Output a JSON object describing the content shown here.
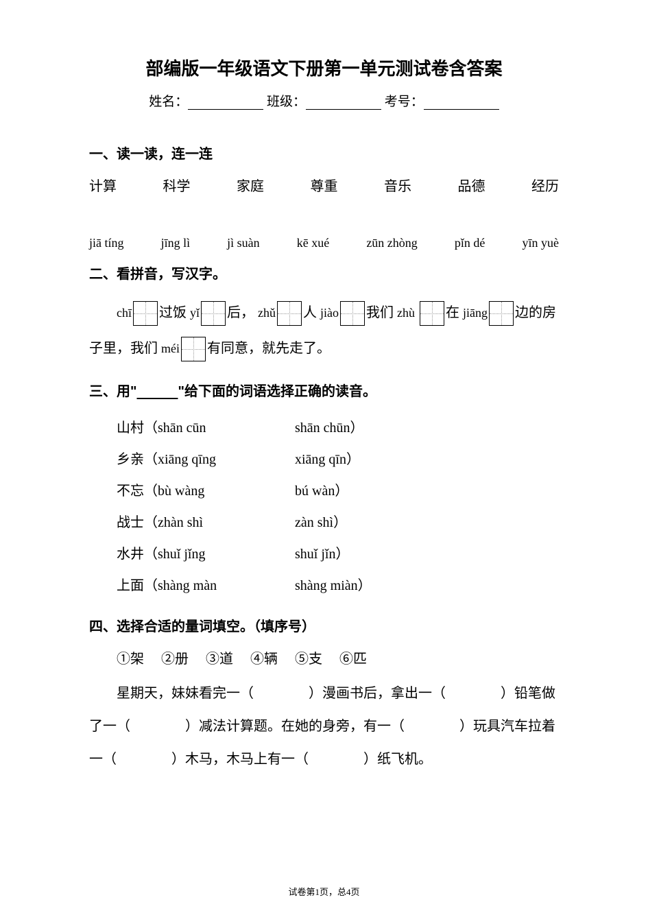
{
  "title": "部编版一年级语文下册第一单元测试卷含答案",
  "header": {
    "name_label": "姓名：",
    "class_label": "班级：",
    "exam_no_label": "考号："
  },
  "q1": {
    "heading": "一、读一读，连一连",
    "words": [
      "计算",
      "科学",
      "家庭",
      "尊重",
      "音乐",
      "品德",
      "经历"
    ],
    "pinyins": [
      "jiā tíng",
      "jīng lì",
      "jì suàn",
      "kē xué",
      "zūn zhòng",
      "pǐn dé",
      "yīn yuè"
    ]
  },
  "q2": {
    "heading": "二、看拼音，写汉字。",
    "seg": {
      "p1": "chī",
      "t1": "过饭 ",
      "p2": "yǐ",
      "t2": "后，",
      "p3": "zhǔ",
      "t3": "人 ",
      "p4": "jiào",
      "t4": "我们 ",
      "p5": "zhù",
      "t5": "在 ",
      "p6": "jiāng",
      "t6": "边的房子里，我们 ",
      "p7": "méi",
      "t7": "有同意，就先走了。"
    }
  },
  "q3": {
    "heading_prefix": "三、用\"",
    "heading_underline": "　　　",
    "heading_suffix": "\"给下面的词语选择正确的读音。",
    "items": [
      {
        "w": "山村",
        "o1": "shān cūn",
        "o2": "shān chūn"
      },
      {
        "w": "乡亲",
        "o1": "xiāng qīng",
        "o2": "xiāng qīn"
      },
      {
        "w": "不忘",
        "o1": "bù wàng",
        "o2": "bú wàn"
      },
      {
        "w": "战士",
        "o1": "zhàn shì",
        "o2": "zàn shì"
      },
      {
        "w": "水井",
        "o1": "shuǐ jǐng",
        "o2": "shuǐ jǐn"
      },
      {
        "w": "上面",
        "o1": "shàng màn",
        "o2": "shàng miàn"
      }
    ]
  },
  "q4": {
    "heading": "四、选择合适的量词填空。（填序号）",
    "options": [
      "①架",
      "②册",
      "③道",
      "④辆",
      "⑤支",
      "⑥匹"
    ],
    "body": {
      "s1": "星期天，妹妹看完一（",
      "s2": "）漫画书后，拿出一（",
      "s3": "）铅笔做了一（",
      "s4": "）减法计算题。在她的身旁，有一（",
      "s5": "）玩具汽车拉着一（",
      "s6": "）木马，木马上有一（",
      "s7": "）纸飞机。",
      "blank": "　　"
    }
  },
  "footer": {
    "page_prefix": "试卷第",
    "page_num": "1",
    "page_mid": "页，总",
    "page_total": "4",
    "page_suffix": "页"
  }
}
